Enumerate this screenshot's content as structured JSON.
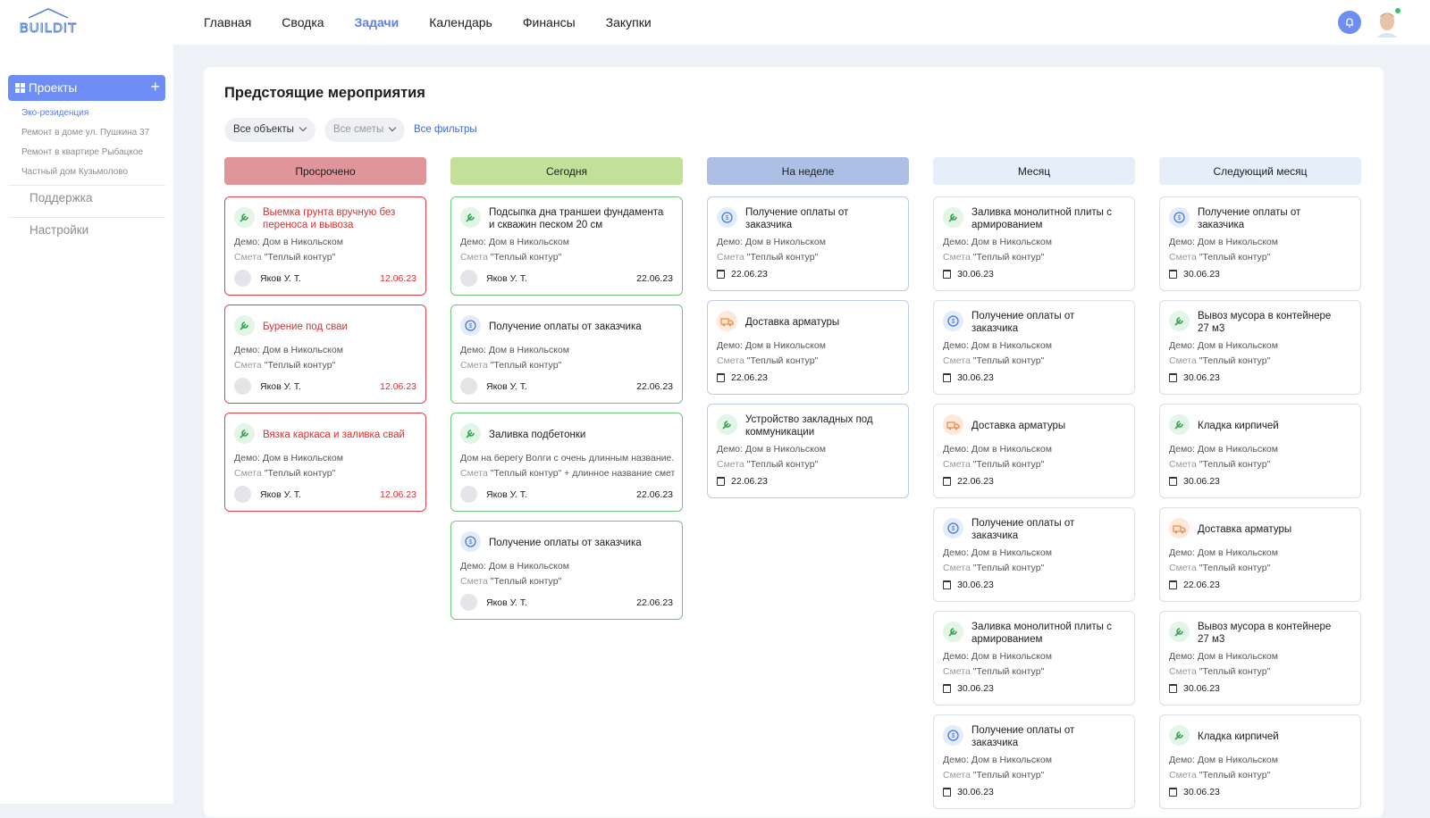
{
  "header": {
    "logo": "BUILDIT",
    "nav": [
      "Главная",
      "Сводка",
      "Задачи",
      "Календарь",
      "Финансы",
      "Закупки"
    ]
  },
  "sidebar": {
    "projects": "Проекты",
    "items": [
      "Эко-резиденция",
      "Ремонт в доме ул. Пушкина 37",
      "Ремонт в квартире Рыбацкое",
      "Частный дом Кузьмолово"
    ],
    "support": "Поддержка",
    "settings": "Настройки"
  },
  "main": {
    "title": "Предстоящие мероприятия",
    "filters": [
      "Все объекты",
      "Все сметы"
    ],
    "all_filters": "Все фильтры",
    "columns": [
      {
        "title": "Просрочено",
        "color": "#e0959a",
        "border": "#e0424a",
        "cards": [
          {
            "icon": "wrench",
            "title": "Выемка грунта вручную без переноса и вывоза",
            "object": "Демо: Дом в Никольском",
            "estimate_label": "Смета",
            "estimate": "\"Теплый контур\"",
            "person": "Яков У. Т.",
            "date": "12.06.23"
          },
          {
            "icon": "wrench",
            "title": "Бурение под сваи",
            "object": "Демо: Дом в Никольском",
            "estimate_label": "Смета",
            "estimate": "\"Теплый контур\"",
            "person": "Яков У. Т.",
            "date": "12.06.23"
          },
          {
            "icon": "wrench",
            "title": "Вязка каркаса и заливка свай",
            "object": "Демо: Дом в Никольском",
            "estimate_label": "Смета",
            "estimate": "\"Теплый контур\"",
            "person": "Яков У. Т.",
            "date": "12.06.23"
          }
        ]
      },
      {
        "title": "Сегодня",
        "color": "#c2e09a",
        "border": "#6cc77a",
        "cards": [
          {
            "icon": "wrench",
            "title": "Подсыпка дна траншеи фундамента и скважин песком 20 см",
            "object": "Демо: Дом в Никольском",
            "estimate_label": "Смета",
            "estimate": "\"Теплый контур\"",
            "person": "Яков У. Т.",
            "date": "22.06.23"
          },
          {
            "icon": "money",
            "title": "Получение оплаты от заказчика",
            "object": "Демо: Дом в Никольском",
            "estimate_label": "Смета",
            "estimate": "\"Теплый контур\"",
            "person": "Яков У. Т.",
            "date": "22.06.23"
          },
          {
            "icon": "wrench",
            "title": "Заливка подбетонки",
            "object": "Дом на берегу Волги с очень длинным название...",
            "estimate_label": "Смета",
            "estimate": "\"Теплый контур\" + длинное название смет...",
            "person": "Яков У. Т.",
            "date": "22.06.23"
          },
          {
            "icon": "money",
            "title": "Получение оплаты от заказчика",
            "object": "Демо: Дом в Никольском",
            "estimate_label": "Смета",
            "estimate": "\"Теплый контур\"",
            "person": "Яков У. Т.",
            "date": "22.06.23"
          }
        ]
      },
      {
        "title": "На неделе",
        "color": "#aebfe6",
        "border": "#bccbe8",
        "cards": [
          {
            "icon": "money",
            "title": "Получение оплаты от заказчика",
            "object": "Демо: Дом в Никольском",
            "estimate_label": "Смета",
            "estimate": "\"Теплый контур\"",
            "date": "22.06.23"
          },
          {
            "icon": "truck",
            "title": "Доставка арматуры",
            "object": "Демо: Дом в Никольском",
            "estimate_label": "Смета",
            "estimate": "\"Теплый контур\"",
            "date": "22.06.23"
          },
          {
            "icon": "wrench",
            "title": "Устройство закладных под коммуникации",
            "object": "Демо: Дом в Никольском",
            "estimate_label": "Смета",
            "estimate": "\"Теплый контур\"",
            "date": "22.06.23"
          }
        ]
      },
      {
        "title": "Месяц",
        "color": "#e6eefa",
        "border": "#dcdfe6",
        "cards": [
          {
            "icon": "wrench",
            "title": "Заливка монолитной плиты с армированием",
            "object": "Демо: Дом в Никольском",
            "estimate_label": "Смета",
            "estimate": "\"Теплый контур\"",
            "date": "30.06.23"
          },
          {
            "icon": "money",
            "title": "Получение оплаты от заказчика",
            "object": "Демо: Дом в Никольском",
            "estimate_label": "Смета",
            "estimate": "\"Теплый контур\"",
            "date": "30.06.23"
          },
          {
            "icon": "truck",
            "title": "Доставка арматуры",
            "object": "Демо: Дом в Никольском",
            "estimate_label": "Смета",
            "estimate": "\"Теплый контур\"",
            "date": "22.06.23"
          },
          {
            "icon": "money",
            "title": "Получение оплаты от заказчика",
            "object": "Демо: Дом в Никольском",
            "estimate_label": "Смета",
            "estimate": "\"Теплый контур\"",
            "date": "30.06.23"
          },
          {
            "icon": "wrench",
            "title": "Заливка монолитной плиты с армированием",
            "object": "Демо: Дом в Никольском",
            "estimate_label": "Смета",
            "estimate": "\"Теплый контур\"",
            "date": "30.06.23"
          },
          {
            "icon": "money",
            "title": "Получение оплаты от заказчика",
            "object": "Демо: Дом в Никольском",
            "estimate_label": "Смета",
            "estimate": "\"Теплый контур\"",
            "date": "30.06.23"
          }
        ]
      },
      {
        "title": "Следующий месяц",
        "color": "#e6eefa",
        "border": "#dcdfe6",
        "cards": [
          {
            "icon": "money",
            "title": "Получение оплаты от заказчика",
            "object": "Демо: Дом в Никольском",
            "estimate_label": "Смета",
            "estimate": "\"Теплый контур\"",
            "date": "30.06.23"
          },
          {
            "icon": "wrench",
            "title": "Вывоз мусора в контейнере 27 м3",
            "object": "Демо: Дом в Никольском",
            "estimate_label": "Смета",
            "estimate": "\"Теплый контур\"",
            "date": "30.06.23"
          },
          {
            "icon": "wrench",
            "title": "Кладка кирпичей",
            "object": "Демо: Дом в Никольском",
            "estimate_label": "Смета",
            "estimate": "\"Теплый контур\"",
            "date": "30.06.23"
          },
          {
            "icon": "truck",
            "title": "Доставка арматуры",
            "object": "Демо: Дом в Никольском",
            "estimate_label": "Смета",
            "estimate": "\"Теплый контур\"",
            "date": "22.06.23"
          },
          {
            "icon": "wrench",
            "title": "Вывоз мусора в контейнере 27 м3",
            "object": "Демо: Дом в Никольском",
            "estimate_label": "Смета",
            "estimate": "\"Теплый контур\"",
            "date": "30.06.23"
          },
          {
            "icon": "wrench",
            "title": "Кладка кирпичей",
            "object": "Демо: Дом в Никольском",
            "estimate_label": "Смета",
            "estimate": "\"Теплый контур\"",
            "date": "30.06.23"
          }
        ]
      }
    ]
  }
}
